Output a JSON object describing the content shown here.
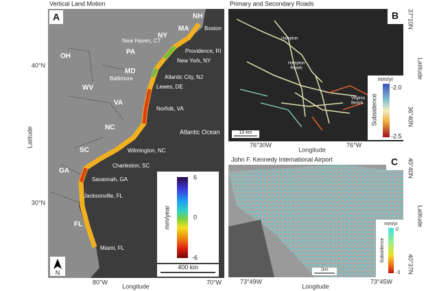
{
  "panel_a": {
    "title": "Vertical Land Motion",
    "letter": "A",
    "states": [
      "NH",
      "MA",
      "NY",
      "PA",
      "OH",
      "MD",
      "WV",
      "VA",
      "NC",
      "SC",
      "GA",
      "FL"
    ],
    "places": [
      "Boston",
      "New Haven, CT",
      "Providence, RI",
      "New York, NY",
      "Atlantic City, NJ",
      "Baltimore",
      "Lewes, DE",
      "Norfolk, VA",
      "Atlantic Ocean",
      "Wilmington, NC",
      "Charleston, SC",
      "Savannah, GA",
      "Jacksonville, FL",
      "Miami, FL"
    ],
    "colorbar": {
      "label": "mm/year",
      "ticks": [
        6,
        0,
        -6
      ]
    },
    "scale": "400 km",
    "north": "N",
    "y_label": "Latitude",
    "y_ticks": [
      "40°N",
      "30°N"
    ],
    "x_label": "Longitude",
    "x_ticks": [
      "80°W",
      "70°W"
    ]
  },
  "panel_b": {
    "title": "Primary and Secondary Roads",
    "letter": "B",
    "places": [
      "Hampton",
      "Hampton",
      "Roads",
      "Virginia",
      "Beach"
    ],
    "colorbar": {
      "unit": "mm/yr",
      "label": "Subsidence",
      "ticks": [
        "-2.0",
        "-2.5"
      ]
    },
    "scale": "10 km",
    "y_label": "Latitude",
    "y_ticks": [
      "37°10N",
      "36°40N"
    ],
    "x_label": "Longitude",
    "x_ticks": [
      "76°30W",
      "76°W"
    ]
  },
  "panel_c": {
    "title": "John F. Kennedy International Airport",
    "letter": "C",
    "colorbar": {
      "unit": "mm/yr",
      "label": "Subsidence",
      "ticks": [
        0,
        -3
      ]
    },
    "scale": "1km",
    "y_label": "Latitude",
    "y_ticks": [
      "40°40N",
      "40°37N"
    ],
    "x_label": "Longitude",
    "x_ticks": [
      "73°49W",
      "73°45W"
    ]
  }
}
